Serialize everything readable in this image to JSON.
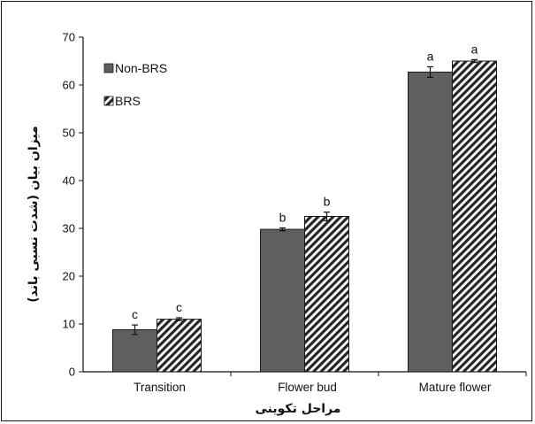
{
  "chart_data": {
    "type": "bar",
    "title": "",
    "xlabel": "مراحل تکوینی",
    "ylabel": "میزان بیان (شدت نسبی باند)",
    "ylim": [
      0,
      70
    ],
    "yticks": [
      0,
      10,
      20,
      30,
      40,
      50,
      60,
      70
    ],
    "categories": [
      "Transition",
      "Flower bud",
      "Mature flower"
    ],
    "series": [
      {
        "name": "Non-BRS",
        "values": [
          8.8,
          29.8,
          62.7
        ],
        "errors": [
          1.0,
          0.3,
          1.1
        ],
        "labels": [
          "c",
          "b",
          "a"
        ],
        "color": "#5f5f5f",
        "pattern": "solid"
      },
      {
        "name": "BRS",
        "values": [
          11.0,
          32.5,
          65.0
        ],
        "errors": [
          0.3,
          0.9,
          0.3
        ],
        "labels": [
          "c",
          "b",
          "a"
        ],
        "color": "#2b2b2b",
        "pattern": "diagonal-hatch"
      }
    ],
    "legend_position": "top-left",
    "grid": false
  }
}
